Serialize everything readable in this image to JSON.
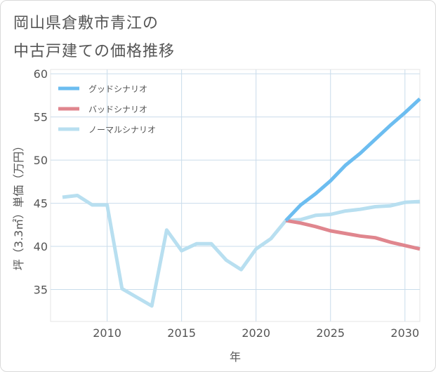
{
  "title_lines": [
    "岡山県倉敷市青江の",
    "中古戸建ての価格推移"
  ],
  "chart_data": {
    "type": "line",
    "xlabel": "年",
    "ylabel": "坪（3.3㎡）単価（万円）",
    "xlim": [
      2006.2,
      2031
    ],
    "ylim": [
      31.3,
      60.5
    ],
    "x_ticks": [
      2010,
      2015,
      2020,
      2025,
      2030
    ],
    "y_ticks": [
      35,
      40,
      45,
      50,
      55,
      60
    ],
    "grid": true,
    "legend_position": "top-left",
    "series": [
      {
        "name": "グッドシナリオ",
        "color": "#6cbdf0",
        "x": [
          2022,
          2023,
          2024,
          2025,
          2026,
          2027,
          2028,
          2029,
          2030,
          2031
        ],
        "values": [
          43.0,
          44.8,
          46.1,
          47.6,
          49.4,
          50.8,
          52.4,
          54.0,
          55.5,
          57.1
        ]
      },
      {
        "name": "バッドシナリオ",
        "color": "#e0868e",
        "x": [
          2022,
          2023,
          2024,
          2025,
          2026,
          2027,
          2028,
          2029,
          2030,
          2031
        ],
        "values": [
          43.0,
          42.7,
          42.3,
          41.8,
          41.5,
          41.2,
          41.0,
          40.5,
          40.1,
          39.7
        ]
      },
      {
        "name": "ノーマルシナリオ",
        "color": "#b8dff0",
        "x": [
          2007,
          2008,
          2009,
          2010,
          2011,
          2012,
          2013,
          2014,
          2015,
          2016,
          2017,
          2018,
          2019,
          2020,
          2021,
          2022,
          2023,
          2024,
          2025,
          2026,
          2027,
          2028,
          2029,
          2030,
          2031
        ],
        "values": [
          45.7,
          45.9,
          44.8,
          44.8,
          35.1,
          34.1,
          33.1,
          41.9,
          39.5,
          40.3,
          40.3,
          38.4,
          37.3,
          39.7,
          40.9,
          43.0,
          43.1,
          43.6,
          43.7,
          44.1,
          44.3,
          44.6,
          44.7,
          45.1,
          45.2
        ]
      }
    ]
  }
}
